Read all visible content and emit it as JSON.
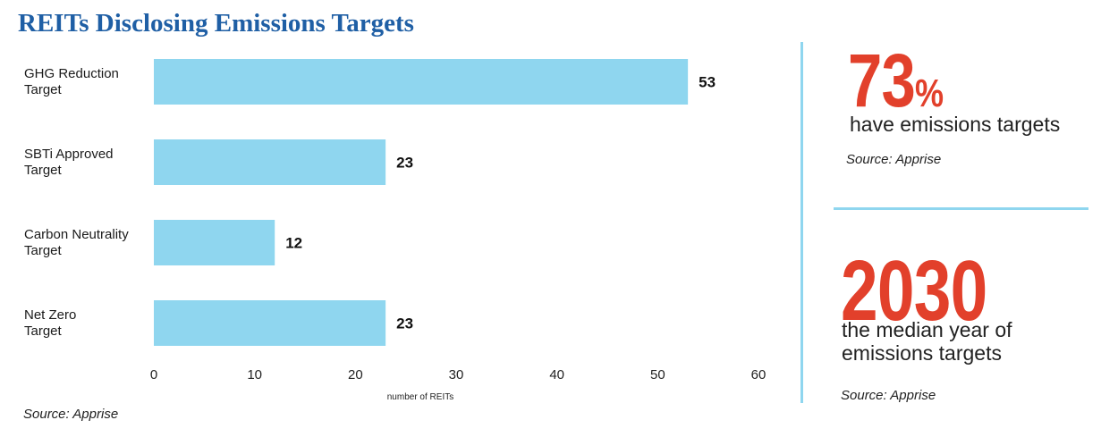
{
  "chart_data": {
    "type": "bar",
    "orientation": "horizontal",
    "title": "REITs Disclosing Emissions Targets",
    "categories": [
      [
        "GHG Reduction",
        "Target"
      ],
      [
        "SBTi Approved",
        "Target"
      ],
      [
        "Carbon Neutrality",
        "Target"
      ],
      [
        "Net Zero",
        "Target"
      ]
    ],
    "values": [
      53,
      23,
      12,
      23
    ],
    "value_labels": [
      "53",
      "23",
      "12",
      "23"
    ],
    "xlabel": "number of REITs",
    "xlim": [
      0,
      60
    ],
    "xticks": [
      0,
      10,
      20,
      30,
      40,
      50,
      60
    ],
    "grid": false,
    "bar_color": "#8fd6ef",
    "source": "Source: Apprise"
  },
  "stats": [
    {
      "value": "73",
      "unit": "%",
      "description": "have emissions targets",
      "source": "Source: Apprise"
    },
    {
      "value": "2030",
      "description": "the median year of emissions targets",
      "source": "Source: Apprise"
    }
  ],
  "colors": {
    "title": "#1f5fa5",
    "accent": "#e2402b",
    "divider": "#8fd6ef"
  }
}
